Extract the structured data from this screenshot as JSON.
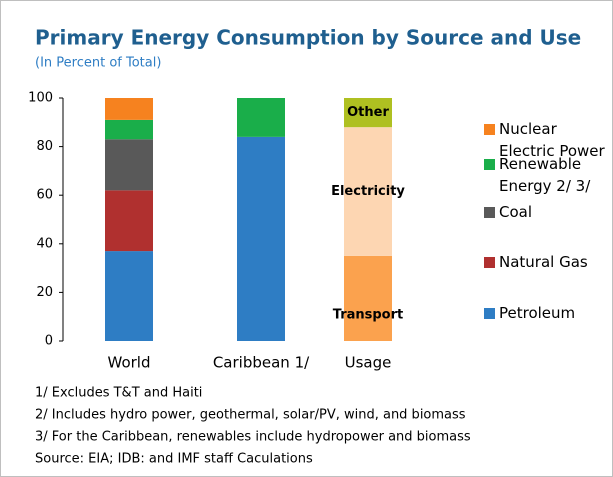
{
  "chart_data": {
    "type": "stacked_bar",
    "title": "Primary Energy Consumption by Source and Use",
    "subtitle": "(In Percent of Total)",
    "categories": [
      "World",
      "Caribbean 1/",
      "Usage"
    ],
    "series": [
      {
        "name": "Petroleum",
        "color": "#2e7dc4",
        "values": [
          37,
          84,
          null
        ]
      },
      {
        "name": "Natural Gas",
        "color": "#b0302f",
        "values": [
          25,
          null,
          null
        ]
      },
      {
        "name": "Coal",
        "color": "#595959",
        "values": [
          21,
          null,
          null
        ]
      },
      {
        "name": "Renewable Energy 2/ 3/",
        "color": "#1aae4a",
        "values": [
          8,
          16,
          null
        ]
      },
      {
        "name": "Nuclear Electric Power",
        "color": "#f6821f",
        "values": [
          9,
          null,
          null
        ]
      },
      {
        "name": "Transport",
        "color": "#fba24e",
        "values": [
          null,
          null,
          35
        ],
        "legend": false,
        "label_inside": true
      },
      {
        "name": "Electricity",
        "color": "#fdd6b2",
        "values": [
          null,
          null,
          53
        ],
        "legend": false,
        "label_inside": true
      },
      {
        "name": "Other",
        "color": "#afc021",
        "values": [
          null,
          null,
          12
        ],
        "legend": false,
        "label_inside": true
      }
    ],
    "ylim": [
      0,
      100
    ],
    "yticks": [
      0,
      20,
      40,
      60,
      80,
      100
    ],
    "grid": false,
    "legend": "right",
    "notes": [
      "1/ Excludes T&T and Haiti",
      "2/ Includes hydro power, geothermal, solar/PV, wind, and biomass",
      "3/ For the Caribbean, renewables include hydropower and biomass",
      "Source: EIA; IDB: and IMF staff Caculations"
    ]
  }
}
